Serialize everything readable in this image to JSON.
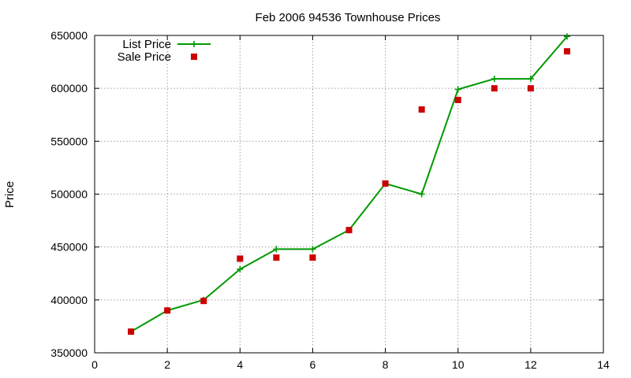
{
  "chart_data": {
    "type": "line",
    "title": "Feb 2006 94536 Townhouse Prices",
    "xlabel": "",
    "ylabel": "Price",
    "xlim": [
      0,
      14
    ],
    "ylim": [
      350000,
      650000
    ],
    "xticks": [
      "0",
      "2",
      "4",
      "6",
      "8",
      "10",
      "12",
      "14"
    ],
    "yticks": [
      "350000",
      "400000",
      "450000",
      "500000",
      "550000",
      "600000",
      "650000"
    ],
    "grid": true,
    "legend_position": "top-left",
    "series": [
      {
        "name": "List Price",
        "style": "line-with-plus-markers",
        "color": "#009900",
        "x": [
          1,
          2,
          3,
          4,
          5,
          6,
          7,
          8,
          9,
          10,
          11,
          12,
          13
        ],
        "y": [
          370000,
          390000,
          400000,
          429000,
          448000,
          448000,
          466000,
          510000,
          500000,
          599000,
          609000,
          609000,
          649000
        ]
      },
      {
        "name": "Sale Price",
        "style": "square-markers",
        "color": "#cc0000",
        "x": [
          1,
          2,
          3,
          4,
          5,
          6,
          7,
          8,
          9,
          10,
          11,
          12,
          13
        ],
        "y": [
          370000,
          390000,
          399000,
          439000,
          440000,
          440000,
          466000,
          510000,
          580000,
          589000,
          600000,
          600000,
          635000
        ]
      }
    ]
  }
}
